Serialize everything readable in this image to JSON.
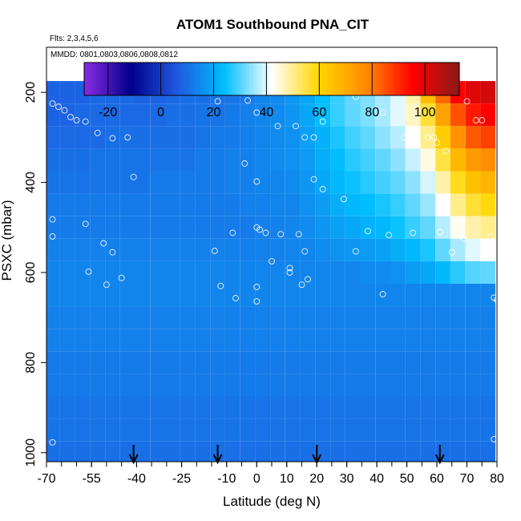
{
  "chart_data": {
    "type": "heatmap",
    "title": "ATOM1 Southbound PNA_CIT",
    "subtitle_flights": "Flts: 2,3,4,5,6",
    "subtitle_dates": "MMDD: 0801,0803,0806,0808,0812",
    "xlabel": "Latitude (deg N)",
    "ylabel": "PSXC (mbar)",
    "xlim": [
      -70,
      80
    ],
    "ylim": [
      1020,
      100
    ],
    "y_reversed": true,
    "x_tick_labels": [
      "-70",
      "-55",
      "-40",
      "-25",
      "-10",
      "0",
      "10",
      "20",
      "30",
      "40",
      "50",
      "60",
      "70",
      "80"
    ],
    "x_ticks": [
      -70,
      -55,
      -40,
      -25,
      -10,
      0,
      10,
      20,
      30,
      40,
      50,
      60,
      70,
      80
    ],
    "y_ticks": [
      200,
      400,
      600,
      800,
      1000
    ],
    "y_tick_labels": [
      "200",
      "400",
      "600",
      "800",
      "1000"
    ],
    "colorbar": {
      "range": [
        -29,
        113
      ],
      "ticks": [
        -20,
        0,
        20,
        40,
        60,
        80,
        100
      ],
      "tick_labels": [
        "-20",
        "0",
        "20",
        "40",
        "60",
        "80",
        "100"
      ],
      "colors": [
        "#8a2be2",
        "#00008b",
        "#1f5be0",
        "#00bfff",
        "#ffffff",
        "#ffd700",
        "#ff8c00",
        "#ff0000",
        "#8b1a1a"
      ]
    },
    "grid": false,
    "pressure_bins": [
      200,
      250,
      300,
      350,
      400,
      450,
      500,
      550,
      600,
      650,
      700,
      750,
      800,
      850,
      900,
      950,
      1000
    ],
    "lat_bins": [
      -68,
      -63,
      -58,
      -53,
      -48,
      -43,
      -38,
      -33,
      -28,
      -23,
      -18,
      -13,
      -8,
      -3,
      2,
      7,
      12,
      17,
      22,
      27,
      32,
      37,
      42,
      47,
      52,
      57,
      62,
      67,
      72,
      77
    ],
    "values": [
      [
        8,
        8,
        8,
        9,
        9,
        9,
        8,
        8,
        9,
        10,
        10,
        11,
        11,
        12,
        14,
        15,
        17,
        20,
        24,
        28,
        31,
        33,
        36,
        40,
        48,
        66,
        82,
        95,
        100,
        102
      ],
      [
        8,
        8,
        9,
        9,
        9,
        9,
        9,
        9,
        10,
        10,
        11,
        11,
        12,
        13,
        14,
        15,
        17,
        20,
        24,
        28,
        31,
        33,
        36,
        40,
        46,
        56,
        72,
        85,
        92,
        95
      ],
      [
        9,
        9,
        9,
        9,
        10,
        10,
        10,
        10,
        10,
        10,
        11,
        12,
        12,
        13,
        14,
        15,
        16,
        19,
        22,
        26,
        29,
        31,
        34,
        37,
        42,
        50,
        62,
        76,
        84,
        87
      ],
      [
        10,
        10,
        10,
        11,
        11,
        11,
        11,
        11,
        11,
        11,
        12,
        12,
        13,
        13,
        14,
        15,
        16,
        18,
        21,
        24,
        27,
        29,
        31,
        34,
        38,
        44,
        55,
        67,
        74,
        77
      ],
      [
        11,
        11,
        11,
        11,
        11,
        11,
        11,
        12,
        12,
        12,
        12,
        12,
        13,
        13,
        14,
        14,
        15,
        17,
        20,
        23,
        25,
        27,
        29,
        31,
        34,
        39,
        48,
        58,
        65,
        68
      ],
      [
        12,
        12,
        12,
        12,
        12,
        12,
        12,
        12,
        12,
        12,
        12,
        12,
        12,
        13,
        13,
        14,
        14,
        16,
        18,
        21,
        23,
        24,
        26,
        28,
        31,
        35,
        42,
        50,
        56,
        59
      ],
      [
        12,
        12,
        12,
        12,
        12,
        12,
        12,
        12,
        12,
        12,
        12,
        12,
        12,
        12,
        13,
        13,
        14,
        15,
        17,
        19,
        20,
        22,
        23,
        25,
        28,
        31,
        37,
        43,
        48,
        50
      ],
      [
        13,
        13,
        13,
        13,
        13,
        13,
        13,
        13,
        13,
        13,
        13,
        13,
        13,
        13,
        13,
        13,
        14,
        14,
        15,
        16,
        17,
        18,
        19,
        21,
        23,
        26,
        31,
        36,
        40,
        42
      ],
      [
        14,
        14,
        14,
        14,
        14,
        14,
        14,
        14,
        14,
        14,
        14,
        14,
        14,
        14,
        14,
        14,
        14,
        14,
        14,
        14,
        14,
        15,
        15,
        16,
        18,
        20,
        23,
        27,
        30,
        31
      ],
      [
        14,
        14,
        14,
        14,
        14,
        14,
        14,
        14,
        14,
        14,
        14,
        14,
        14,
        14,
        14,
        14,
        14,
        14,
        14,
        14,
        14,
        14,
        14,
        14,
        14,
        14,
        14,
        14,
        14,
        14
      ],
      [
        13,
        13,
        13,
        13,
        13,
        13,
        13,
        13,
        13,
        13,
        13,
        13,
        13,
        13,
        13,
        13,
        13,
        13,
        13,
        13,
        13,
        13,
        13,
        13,
        13,
        13,
        13,
        13,
        13,
        13
      ],
      [
        13,
        13,
        13,
        13,
        13,
        13,
        13,
        13,
        13,
        13,
        13,
        13,
        13,
        13,
        13,
        13,
        13,
        13,
        13,
        13,
        13,
        13,
        13,
        13,
        13,
        13,
        13,
        13,
        13,
        13
      ],
      [
        12,
        12,
        12,
        12,
        12,
        12,
        12,
        12,
        12,
        12,
        12,
        12,
        12,
        12,
        12,
        12,
        12,
        12,
        12,
        12,
        12,
        12,
        12,
        12,
        12,
        12,
        12,
        12,
        12,
        12
      ],
      [
        12,
        12,
        12,
        12,
        12,
        12,
        12,
        12,
        12,
        12,
        12,
        12,
        12,
        12,
        12,
        12,
        12,
        12,
        12,
        12,
        12,
        12,
        12,
        12,
        12,
        12,
        12,
        12,
        12,
        12
      ],
      [
        11,
        11,
        11,
        11,
        11,
        11,
        11,
        11,
        11,
        11,
        11,
        11,
        11,
        11,
        11,
        11,
        11,
        11,
        11,
        11,
        11,
        11,
        11,
        11,
        11,
        11,
        11,
        11,
        11,
        11
      ],
      [
        11,
        11,
        11,
        11,
        11,
        11,
        11,
        11,
        11,
        11,
        11,
        11,
        11,
        11,
        11,
        11,
        11,
        11,
        11,
        11,
        11,
        11,
        11,
        11,
        11,
        11,
        11,
        11,
        11,
        11
      ],
      [
        10,
        10,
        10,
        10,
        10,
        10,
        10,
        10,
        10,
        10,
        10,
        10,
        10,
        10,
        10,
        10,
        10,
        10,
        10,
        10,
        10,
        10,
        10,
        10,
        10,
        10,
        10,
        10,
        10,
        10
      ]
    ],
    "profile_markers_lat": [
      -41,
      -13,
      20,
      61
    ],
    "observation_points": [
      {
        "lat": -68,
        "p": 225
      },
      {
        "lat": -66,
        "p": 232
      },
      {
        "lat": -64,
        "p": 240
      },
      {
        "lat": -62,
        "p": 255
      },
      {
        "lat": -60,
        "p": 262
      },
      {
        "lat": -57,
        "p": 265
      },
      {
        "lat": -53,
        "p": 290
      },
      {
        "lat": -48,
        "p": 302
      },
      {
        "lat": -43,
        "p": 300
      },
      {
        "lat": -41,
        "p": 388
      },
      {
        "lat": -13,
        "p": 220
      },
      {
        "lat": -3,
        "p": 218
      },
      {
        "lat": 0,
        "p": 245
      },
      {
        "lat": 7,
        "p": 275
      },
      {
        "lat": 13,
        "p": 275
      },
      {
        "lat": 16,
        "p": 300
      },
      {
        "lat": 19,
        "p": 300
      },
      {
        "lat": 22,
        "p": 265
      },
      {
        "lat": 26,
        "p": 182
      },
      {
        "lat": 33,
        "p": 210
      },
      {
        "lat": 42,
        "p": 245
      },
      {
        "lat": 49,
        "p": 300
      },
      {
        "lat": 57,
        "p": 300
      },
      {
        "lat": 59,
        "p": 300
      },
      {
        "lat": 60,
        "p": 312
      },
      {
        "lat": 63,
        "p": 330
      },
      {
        "lat": 70,
        "p": 220
      },
      {
        "lat": 73,
        "p": 262
      },
      {
        "lat": 75,
        "p": 262
      },
      {
        "lat": -4,
        "p": 358
      },
      {
        "lat": 0,
        "p": 398
      },
      {
        "lat": 19,
        "p": 393
      },
      {
        "lat": 22,
        "p": 415
      },
      {
        "lat": 29,
        "p": 437
      },
      {
        "lat": -68,
        "p": 482
      },
      {
        "lat": -68,
        "p": 520
      },
      {
        "lat": -57,
        "p": 492
      },
      {
        "lat": -51,
        "p": 535
      },
      {
        "lat": -48,
        "p": 555
      },
      {
        "lat": -56,
        "p": 598
      },
      {
        "lat": -50,
        "p": 627
      },
      {
        "lat": -45,
        "p": 612
      },
      {
        "lat": -14,
        "p": 552
      },
      {
        "lat": -12,
        "p": 630
      },
      {
        "lat": -8,
        "p": 512
      },
      {
        "lat": -7,
        "p": 657
      },
      {
        "lat": 0,
        "p": 500
      },
      {
        "lat": 1,
        "p": 505
      },
      {
        "lat": 3,
        "p": 512
      },
      {
        "lat": 8,
        "p": 515
      },
      {
        "lat": 14,
        "p": 515
      },
      {
        "lat": 16,
        "p": 553
      },
      {
        "lat": 5,
        "p": 575
      },
      {
        "lat": 11,
        "p": 590
      },
      {
        "lat": 11,
        "p": 600
      },
      {
        "lat": 15,
        "p": 627
      },
      {
        "lat": 17,
        "p": 615
      },
      {
        "lat": 0,
        "p": 632
      },
      {
        "lat": 0,
        "p": 664
      },
      {
        "lat": 33,
        "p": 553
      },
      {
        "lat": 37,
        "p": 508
      },
      {
        "lat": 42,
        "p": 648
      },
      {
        "lat": 44,
        "p": 517
      },
      {
        "lat": 52,
        "p": 512
      },
      {
        "lat": 61,
        "p": 510
      },
      {
        "lat": 65,
        "p": 555
      },
      {
        "lat": 69,
        "p": 525
      },
      {
        "lat": 78,
        "p": 520
      },
      {
        "lat": 79,
        "p": 656
      },
      {
        "lat": 80,
        "p": 661
      },
      {
        "lat": -68,
        "p": 977
      },
      {
        "lat": 79,
        "p": 970
      }
    ]
  }
}
